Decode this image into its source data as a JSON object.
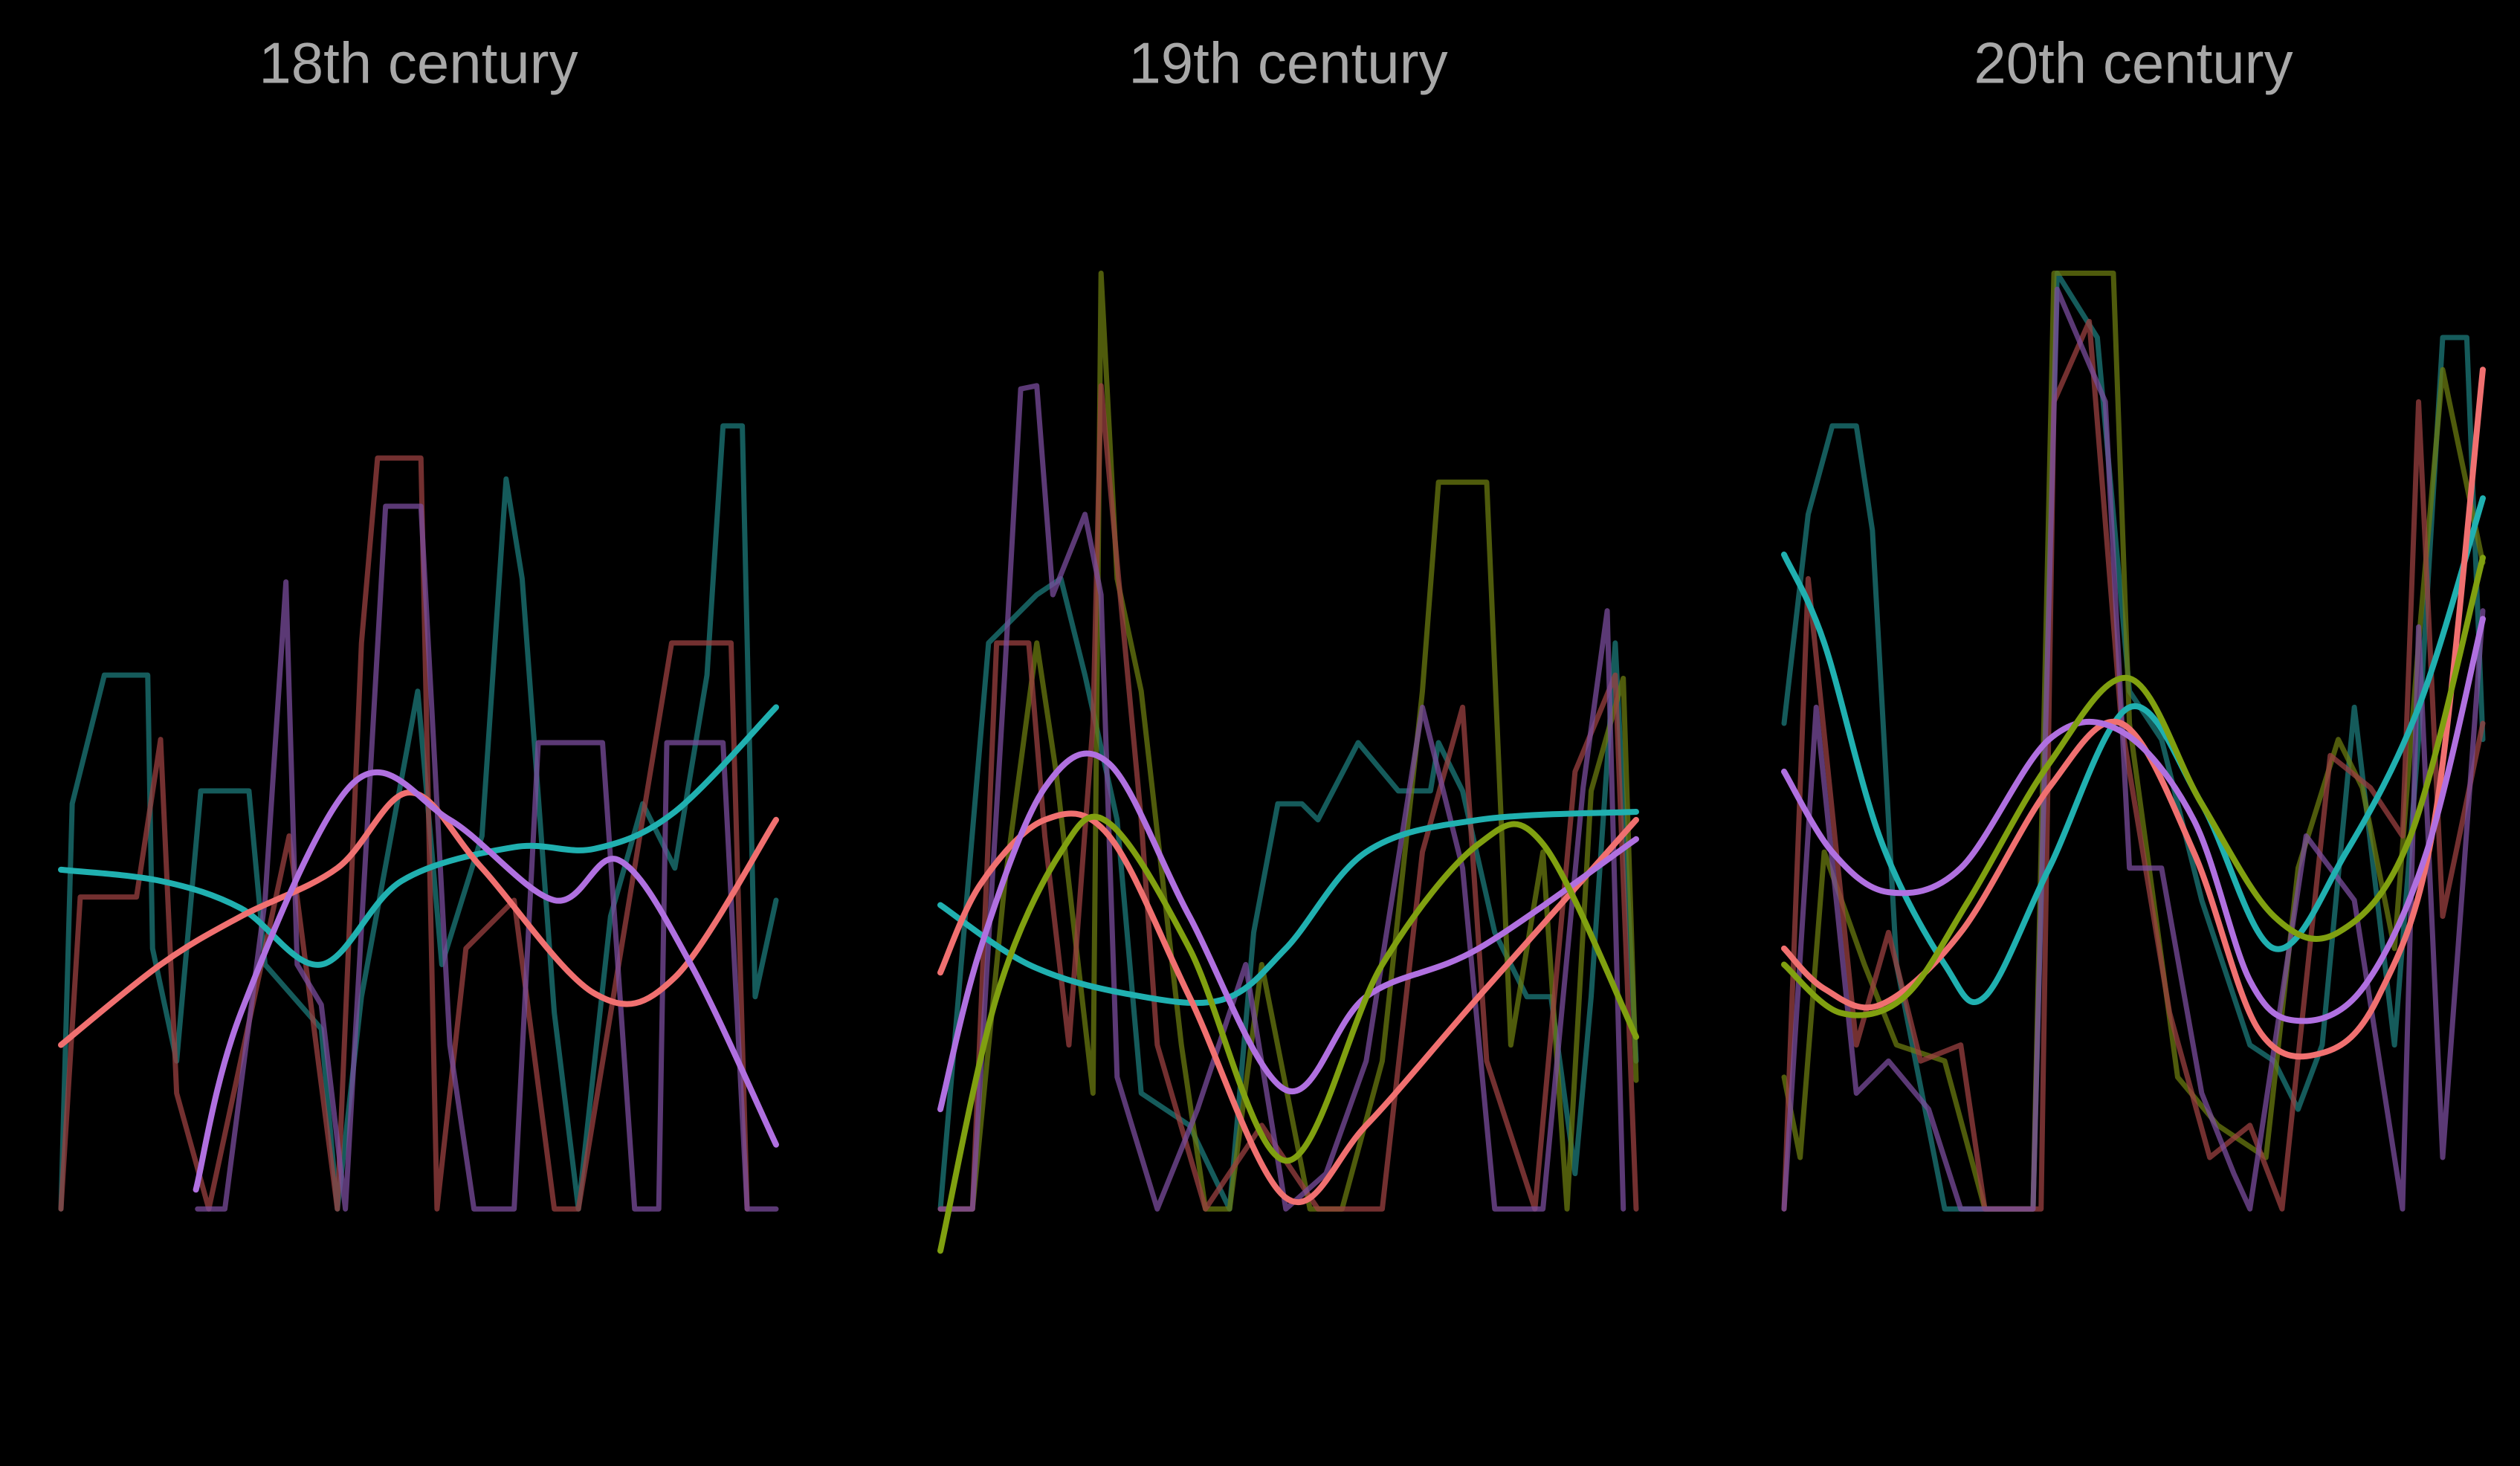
{
  "chart_data": [
    {
      "type": "line",
      "title": "18th century",
      "xlim": [
        0,
        445
      ],
      "ylim": [
        -60,
        640
      ],
      "series": [
        {
          "color": "#1c7a7a",
          "alpha": 0.75,
          "smooth": false,
          "x": [
            0,
            7,
            27,
            54,
            57,
            72,
            87,
            117,
            127,
            162,
            172,
            187,
            222,
            237,
            262,
            277,
            287,
            307,
            322,
            342,
            362,
            382,
            402,
            412,
            424,
            432,
            445
          ],
          "values": [
            0,
            252,
            332,
            332,
            162,
            92,
            260,
            260,
            152,
            112,
            0,
            132,
            322,
            152,
            232,
            454,
            392,
            122,
            0,
            182,
            252,
            212,
            332,
            487,
            487,
            132,
            192
          ]
        },
        {
          "color": "#9a4040",
          "alpha": 0.75,
          "smooth": false,
          "x": [
            0,
            12,
            47,
            62,
            72,
            92,
            142,
            172,
            187,
            197,
            224,
            234,
            252,
            282,
            307,
            322,
            380,
            417,
            427
          ],
          "values": [
            0,
            194,
            194,
            292,
            72,
            0,
            232,
            0,
            352,
            467,
            467,
            0,
            162,
            192,
            0,
            0,
            352,
            352,
            0
          ]
        },
        {
          "color": "#7a4c9c",
          "alpha": 0.75,
          "smooth": false,
          "x": [
            85,
            102,
            127,
            140,
            147,
            162,
            177,
            202,
            224,
            242,
            257,
            282,
            297,
            337,
            357,
            372,
            377,
            412,
            427,
            445
          ],
          "values": [
            0,
            0,
            192,
            390,
            152,
            127,
            0,
            437,
            437,
            102,
            0,
            0,
            290,
            290,
            0,
            0,
            290,
            290,
            0,
            0
          ]
        },
        {
          "color": "#20b0b0",
          "alpha": 1,
          "smooth": true,
          "x": [
            0,
            62,
            112,
            162,
            212,
            282,
            332,
            382,
            445
          ],
          "values": [
            211,
            204,
            187,
            152,
            204,
            225,
            224,
            247,
            312
          ]
        },
        {
          "color": "#f07070",
          "alpha": 1,
          "smooth": true,
          "x": [
            0,
            62,
            112,
            172,
            217,
            262,
            332,
            382,
            445
          ],
          "values": [
            102,
            152,
            182,
            212,
            259,
            212,
            134,
            144,
            242
          ]
        },
        {
          "color": "#b070e0",
          "alpha": 1,
          "smooth": true,
          "x": [
            84,
            112,
            182,
            242,
            307,
            347,
            392,
            445
          ],
          "values": [
            12,
            122,
            265,
            242,
            192,
            217,
            152,
            40
          ]
        }
      ]
    },
    {
      "type": "line",
      "title": "19th century",
      "xlim": [
        0,
        433
      ],
      "ylim": [
        -60,
        640
      ],
      "series": [
        {
          "color": "#1c7a7a",
          "alpha": 0.75,
          "smooth": false,
          "x": [
            0,
            30,
            60,
            75,
            90,
            110,
            125,
            155,
            180,
            195,
            210,
            225,
            235,
            260,
            285,
            305,
            310,
            325,
            345,
            365,
            380,
            395,
            405,
            420,
            433
          ],
          "values": [
            0,
            352,
            382,
            392,
            332,
            242,
            72,
            52,
            0,
            172,
            252,
            252,
            242,
            290,
            260,
            260,
            290,
            260,
            172,
            132,
            132,
            22,
            132,
            352,
            92
          ]
        },
        {
          "color": "#6a7a10",
          "alpha": 0.75,
          "smooth": false,
          "x": [
            0,
            20,
            40,
            60,
            72,
            95,
            100,
            110,
            125,
            150,
            165,
            180,
            200,
            230,
            250,
            275,
            300,
            310,
            340,
            355,
            375,
            390,
            405,
            425,
            433
          ],
          "values": [
            0,
            0,
            202,
            352,
            272,
            72,
            582,
            392,
            322,
            102,
            0,
            0,
            152,
            0,
            0,
            92,
            322,
            452,
            452,
            102,
            222,
            0,
            260,
            330,
            80
          ]
        },
        {
          "color": "#9a4040",
          "alpha": 0.75,
          "smooth": false,
          "x": [
            0,
            20,
            35,
            55,
            65,
            80,
            95,
            100,
            110,
            125,
            135,
            165,
            200,
            235,
            275,
            300,
            325,
            340,
            370,
            395,
            420,
            433
          ],
          "values": [
            0,
            0,
            352,
            352,
            232,
            102,
            302,
            512,
            402,
            242,
            102,
            0,
            52,
            0,
            0,
            222,
            312,
            92,
            0,
            272,
            332,
            0
          ]
        },
        {
          "color": "#7a4c9c",
          "alpha": 0.75,
          "smooth": false,
          "x": [
            0,
            20,
            40,
            50,
            60,
            70,
            90,
            100,
            110,
            135,
            160,
            190,
            215,
            240,
            265,
            300,
            325,
            345,
            375,
            400,
            415,
            425
          ],
          "values": [
            0,
            0,
            332,
            510,
            512,
            382,
            432,
            382,
            82,
            0,
            62,
            152,
            0,
            22,
            92,
            312,
            212,
            0,
            0,
            262,
            372,
            0
          ]
        },
        {
          "color": "#20b0b0",
          "alpha": 1,
          "smooth": true,
          "x": [
            0,
            55,
            115,
            175,
            215,
            265,
            335,
            433
          ],
          "values": [
            189,
            152,
            134,
            130,
            162,
            222,
            242,
            247
          ]
        },
        {
          "color": "#f07070",
          "alpha": 1,
          "smooth": true,
          "x": [
            0,
            25,
            65,
            105,
            155,
            215,
            265,
            335,
            433
          ],
          "values": [
            147,
            202,
            242,
            232,
            132,
            7,
            52,
            132,
            242
          ]
        },
        {
          "color": "#b070e0",
          "alpha": 1,
          "smooth": true,
          "x": [
            0,
            25,
            65,
            105,
            155,
            215,
            265,
            335,
            433
          ],
          "values": [
            62,
            162,
            262,
            277,
            182,
            74,
            132,
            162,
            230
          ]
        },
        {
          "color": "#80a010",
          "alpha": 1,
          "smooth": true,
          "x": [
            0,
            35,
            75,
            105,
            155,
            215,
            275,
            335,
            375,
            433
          ],
          "values": [
            -26,
            132,
            222,
            240,
            162,
            30,
            152,
            227,
            227,
            107
          ]
        }
      ]
    },
    {
      "type": "line",
      "title": "20th century",
      "xlim": [
        0,
        435
      ],
      "ylim": [
        -60,
        640
      ],
      "series": [
        {
          "color": "#1c7a7a",
          "alpha": 0.75,
          "smooth": false,
          "x": [
            0,
            15,
            30,
            45,
            55,
            70,
            100,
            155,
            170,
            195,
            215,
            235,
            260,
            290,
            305,
            320,
            335,
            355,
            380,
            395,
            410,
            425,
            435
          ],
          "values": [
            302,
            432,
            487,
            487,
            422,
            152,
            0,
            0,
            582,
            542,
            322,
            292,
            192,
            102,
            92,
            62,
            102,
            312,
            102,
            292,
            542,
            542,
            292
          ]
        },
        {
          "color": "#6a7a10",
          "alpha": 0.75,
          "smooth": false,
          "x": [
            0,
            10,
            25,
            50,
            70,
            100,
            125,
            155,
            168,
            205,
            215,
            245,
            270,
            300,
            320,
            345,
            360,
            380,
            395,
            410,
            435
          ],
          "values": [
            82,
            32,
            222,
            152,
            102,
            92,
            0,
            0,
            582,
            582,
            302,
            82,
            52,
            32,
            212,
            292,
            262,
            162,
            352,
            522,
            402
          ]
        },
        {
          "color": "#9a4040",
          "alpha": 0.75,
          "smooth": false,
          "x": [
            0,
            15,
            45,
            65,
            85,
            110,
            125,
            160,
            168,
            190,
            210,
            240,
            265,
            290,
            310,
            340,
            365,
            385,
            395,
            410,
            435
          ],
          "values": [
            0,
            392,
            102,
            172,
            92,
            102,
            0,
            0,
            502,
            552,
            302,
            122,
            32,
            52,
            0,
            282,
            262,
            232,
            502,
            182,
            302
          ]
        },
        {
          "color": "#7a4c9c",
          "alpha": 0.75,
          "smooth": false,
          "x": [
            0,
            20,
            45,
            65,
            90,
            110,
            155,
            170,
            200,
            215,
            235,
            260,
            280,
            290,
            325,
            355,
            385,
            395,
            410,
            435
          ],
          "values": [
            0,
            312,
            72,
            92,
            62,
            0,
            0,
            572,
            502,
            212,
            212,
            72,
            22,
            0,
            232,
            192,
            0,
            362,
            32,
            372
          ]
        },
        {
          "color": "#20b0b0",
          "alpha": 1,
          "smooth": true,
          "x": [
            0,
            25,
            60,
            100,
            125,
            165,
            215,
            260,
            305,
            350,
            395,
            435
          ],
          "values": [
            407,
            352,
            230,
            152,
            132,
            212,
            312,
            252,
            162,
            222,
            312,
            442
          ]
        },
        {
          "color": "#f07070",
          "alpha": 1,
          "smooth": true,
          "x": [
            0,
            25,
            60,
            110,
            165,
            210,
            255,
            295,
            335,
            370,
            405,
            435
          ],
          "values": [
            162,
            137,
            127,
            172,
            262,
            302,
            222,
            112,
            97,
            132,
            242,
            522
          ]
        },
        {
          "color": "#b070e0",
          "alpha": 1,
          "smooth": true,
          "x": [
            0,
            30,
            65,
            110,
            165,
            210,
            255,
            290,
            320,
            360,
            400,
            435
          ],
          "values": [
            272,
            222,
            197,
            212,
            292,
            297,
            242,
            142,
            117,
            137,
            222,
            367
          ]
        },
        {
          "color": "#80a010",
          "alpha": 1,
          "smooth": true,
          "x": [
            0,
            35,
            75,
            115,
            165,
            215,
            260,
            305,
            345,
            390,
            435
          ],
          "values": [
            152,
            122,
            132,
            192,
            277,
            330,
            252,
            182,
            172,
            232,
            405
          ]
        }
      ]
    }
  ]
}
